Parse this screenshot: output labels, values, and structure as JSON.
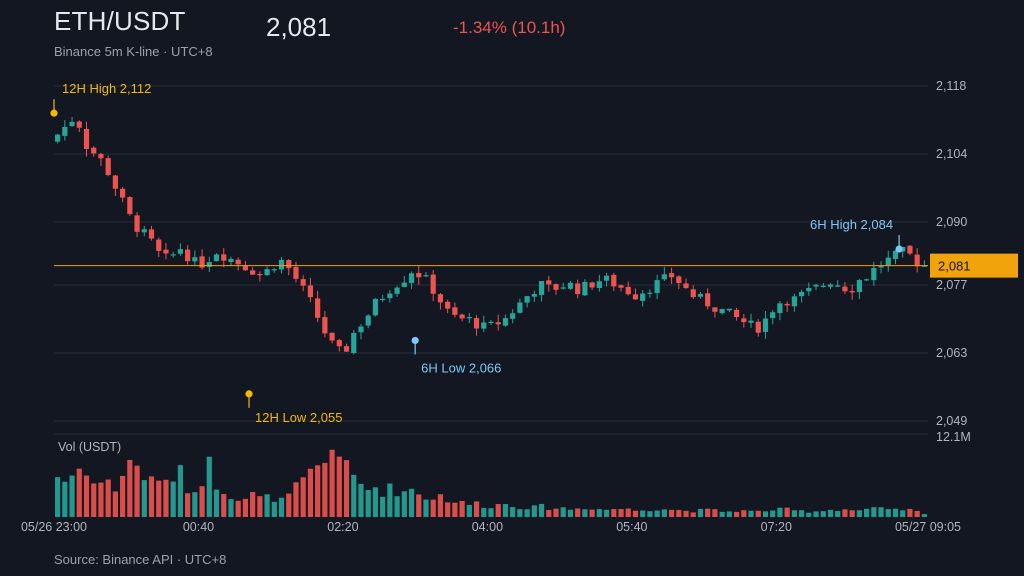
{
  "header": {
    "pair": "ETH/USDT",
    "subtitle": "Binance 5m K-line · UTC+8",
    "last_price": "2,081",
    "change": "-1.34% (10.1h)"
  },
  "footer": {
    "source": "Source: Binance API · UTC+8"
  },
  "colors": {
    "background": "#131722",
    "up": "#26a69a",
    "down": "#ef5350",
    "twelve_hour_annotation": "#f0b90b",
    "six_hour_annotation": "#7ec8f5",
    "last_price_line": "#f0a30a",
    "grid": "#2a2e39"
  },
  "chart_data": {
    "type": "candlestick",
    "interval": "5m",
    "timezone": "UTC+8",
    "price_axis": {
      "ticks": [
        "2,118",
        "2,104",
        "2,090",
        "2,077",
        "2,063",
        "2,049"
      ],
      "tick_values": [
        2118,
        2104,
        2090,
        2077,
        2063,
        2049
      ],
      "range": [
        2049,
        2118
      ],
      "side": "right",
      "grid": true
    },
    "time_axis": {
      "ticks": [
        "05/26 23:00",
        "00:40",
        "02:20",
        "04:00",
        "05:40",
        "07:20",
        "05/27 09:05"
      ],
      "tick_times": [
        "2025-05-26 23:00",
        "2025-05-27 00:40",
        "2025-05-27 02:20",
        "2025-05-27 04:00",
        "2025-05-27 05:40",
        "2025-05-27 07:20",
        "2025-05-27 09:05"
      ],
      "range": [
        "2025-05-26 23:00",
        "2025-05-27 09:05"
      ]
    },
    "volume_axis": {
      "label": "Vol (USDT)",
      "max_label": "12.1M",
      "max": 12.1
    },
    "last_price": {
      "value": 2081,
      "label": "2,081"
    },
    "annotations": [
      {
        "label": "12H High 2,112",
        "time": "2025-05-26 23:00",
        "price": 2112,
        "group": "12h"
      },
      {
        "label": "12H Low 2,055",
        "time": "2025-05-27 01:15",
        "price": 2055,
        "group": "12h"
      },
      {
        "label": "6H Low 2,066",
        "time": "2025-05-27 03:10",
        "price": 2066,
        "group": "6h"
      },
      {
        "label": "6H High 2,084",
        "time": "2025-05-27 08:45",
        "price": 2084,
        "group": "6h"
      }
    ],
    "ohlc_close_path": [
      2108,
      2110,
      2112,
      2106,
      2104,
      2102,
      2098,
      2094,
      2090,
      2088,
      2086,
      2083,
      2082,
      2085,
      2083,
      2081,
      2082,
      2084,
      2083,
      2082,
      2081,
      2080,
      2079,
      2081,
      2082,
      2080,
      2077,
      2074,
      2070,
      2066,
      2063,
      2064,
      2068,
      2070,
      2073,
      2075,
      2077,
      2078,
      2080,
      2079,
      2077,
      2074,
      2071,
      2070,
      2070,
      2069,
      2068,
      2069,
      2070,
      2072,
      2074,
      2076,
      2077,
      2076,
      2077,
      2077,
      2076,
      2077,
      2078,
      2078,
      2077,
      2076,
      2075,
      2076,
      2077,
      2078,
      2079,
      2077,
      2075,
      2074,
      2073,
      2072,
      2071,
      2070,
      2069,
      2068,
      2070,
      2073,
      2074,
      2074,
      2075,
      2076,
      2077,
      2078,
      2077,
      2076,
      2078,
      2079,
      2081,
      2082,
      2083,
      2084,
      2082,
      2081
    ],
    "volume_profile": [
      6.2,
      5.4,
      7.0,
      8.1,
      4.5,
      5.8,
      3.9,
      6.6,
      9.6,
      5.1,
      7.3,
      4.2,
      5.9,
      6.8,
      4.4,
      3.6,
      8.6,
      5.3,
      4.0,
      3.1,
      2.8,
      3.4,
      2.6,
      3.2,
      2.4,
      3.5,
      4.8,
      6.1,
      7.4,
      8.9,
      12.1,
      7.0,
      5.6,
      4.1,
      4.6,
      3.9,
      4.4,
      3.7,
      4.3,
      3.4,
      2.8,
      3.3,
      2.6,
      2.2,
      1.9,
      2.1,
      1.6,
      1.8,
      2.0,
      1.7,
      1.5,
      1.4,
      1.6,
      1.3,
      1.4,
      1.2,
      1.3,
      1.5,
      1.2,
      1.1,
      1.3,
      1.2,
      1.0,
      1.1,
      1.2,
      1.3,
      1.1,
      1.0,
      0.9,
      1.0,
      1.1,
      0.9,
      0.8,
      1.0,
      0.9,
      0.8,
      1.0,
      1.1,
      1.2,
      1.0,
      0.9,
      0.8,
      1.0,
      1.1,
      1.2,
      1.1,
      1.0,
      1.2,
      1.3,
      1.1,
      1.0,
      1.2,
      0.9,
      0.4
    ]
  }
}
